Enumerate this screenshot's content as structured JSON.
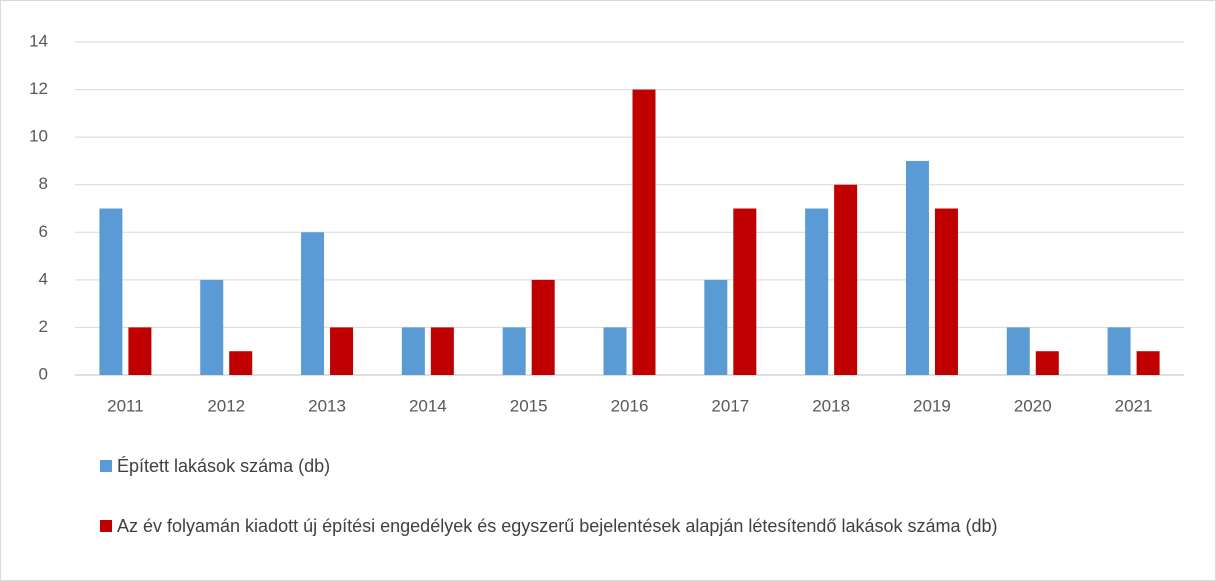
{
  "chart_data": {
    "type": "bar",
    "categories": [
      "2011",
      "2012",
      "2013",
      "2014",
      "2015",
      "2016",
      "2017",
      "2018",
      "2019",
      "2020",
      "2021"
    ],
    "series": [
      {
        "name": "Épített lakások száma (db)",
        "color": "#5b9bd5",
        "values": [
          7,
          4,
          6,
          2,
          2,
          2,
          4,
          7,
          9,
          2,
          2
        ]
      },
      {
        "name": "Az év folyamán kiadott új építési engedélyek és egyszerű bejelentések alapján létesítendő lakások száma (db)",
        "color": "#c00000",
        "values": [
          2,
          1,
          2,
          2,
          4,
          12,
          7,
          8,
          7,
          1,
          1
        ]
      }
    ],
    "ylim": [
      0,
      14
    ],
    "yticks": [
      0,
      2,
      4,
      6,
      8,
      10,
      12,
      14
    ],
    "grid": true,
    "legend": "bottom"
  }
}
